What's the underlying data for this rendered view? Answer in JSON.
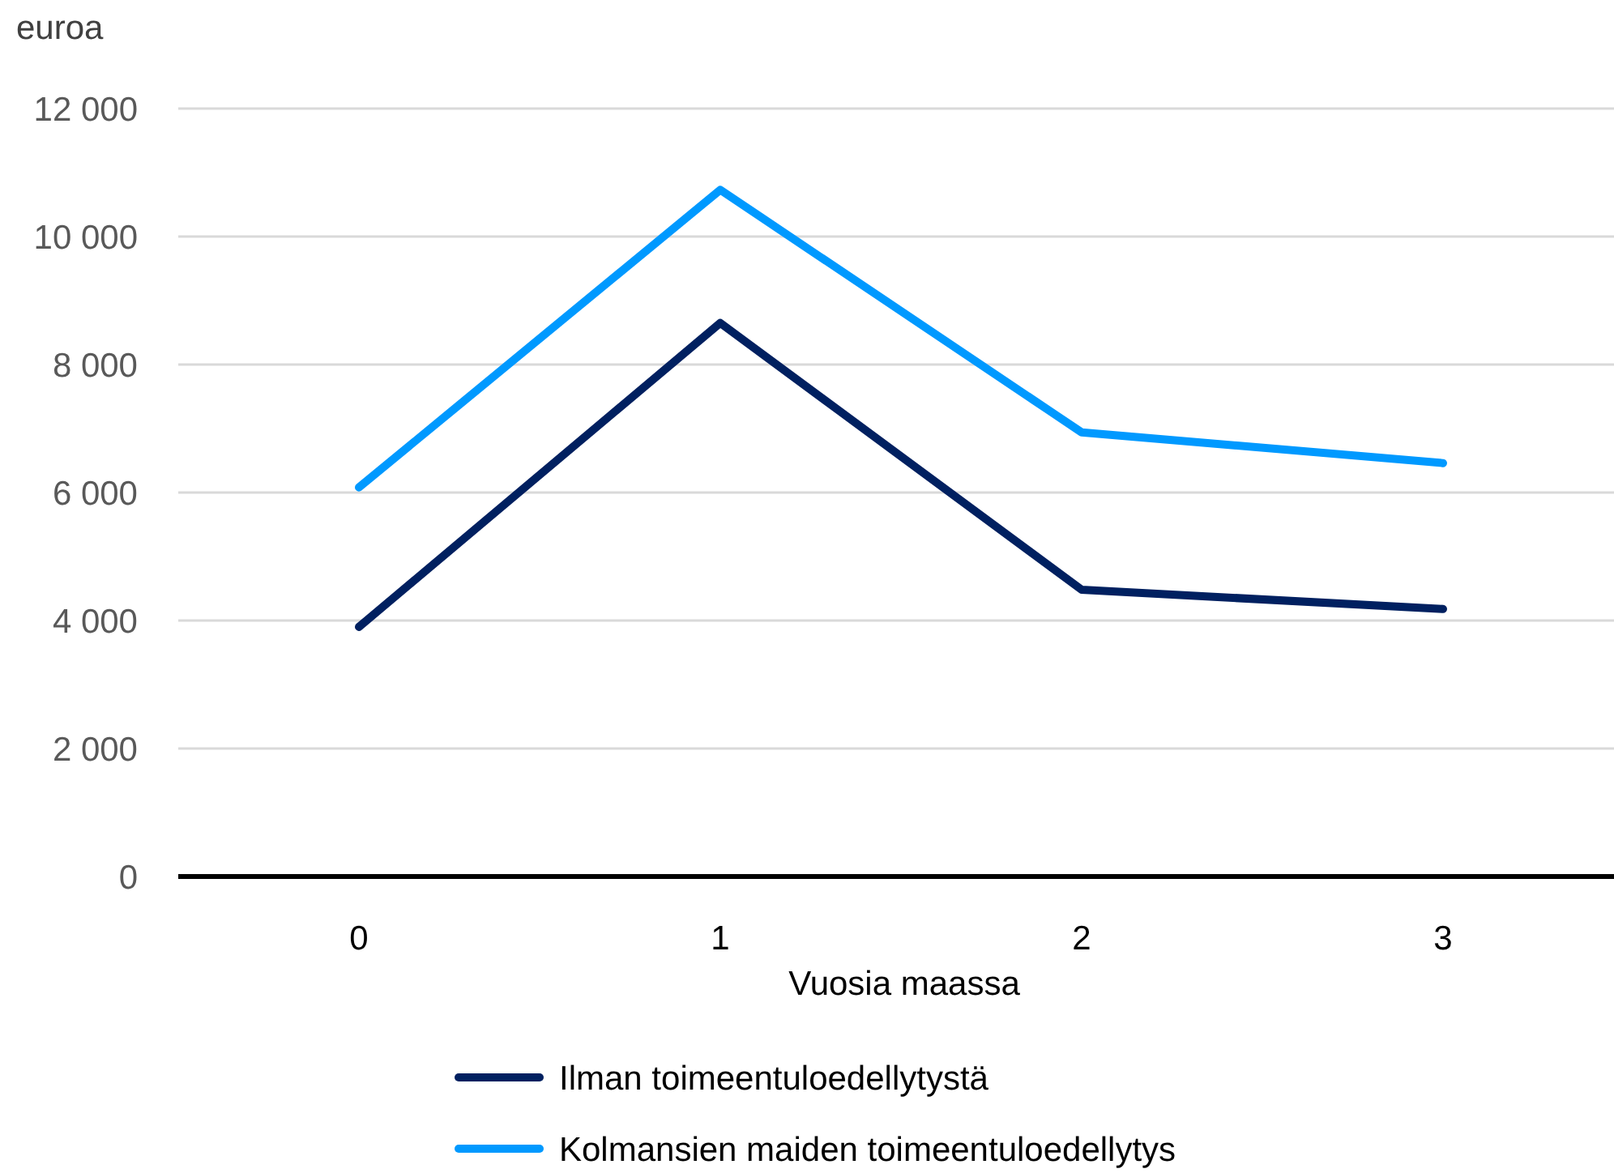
{
  "chart_data": {
    "type": "line",
    "xlabel": "Vuosia maassa",
    "ylabel": "euroa",
    "categories": [
      "0",
      "1",
      "2",
      "3"
    ],
    "series": [
      {
        "name": "Ilman toimeentuloedellytystä",
        "color": "#002060",
        "values": [
          3900,
          8650,
          4480,
          4180
        ]
      },
      {
        "name": "Kolmansien maiden toimeentuloedellytys",
        "color": "#0099ff",
        "values": [
          6080,
          10730,
          6940,
          6460
        ]
      }
    ],
    "ylim": [
      0,
      12000
    ],
    "yticks": [
      {
        "value": 0,
        "label": "0"
      },
      {
        "value": 2000,
        "label": "2 000"
      },
      {
        "value": 4000,
        "label": "4 000"
      },
      {
        "value": 6000,
        "label": "6 000"
      },
      {
        "value": 8000,
        "label": "8 000"
      },
      {
        "value": 10000,
        "label": "10 000"
      },
      {
        "value": 12000,
        "label": "12 000"
      }
    ],
    "grid": "y",
    "legend": "bottom",
    "marker": "none",
    "line_style": "solid"
  }
}
